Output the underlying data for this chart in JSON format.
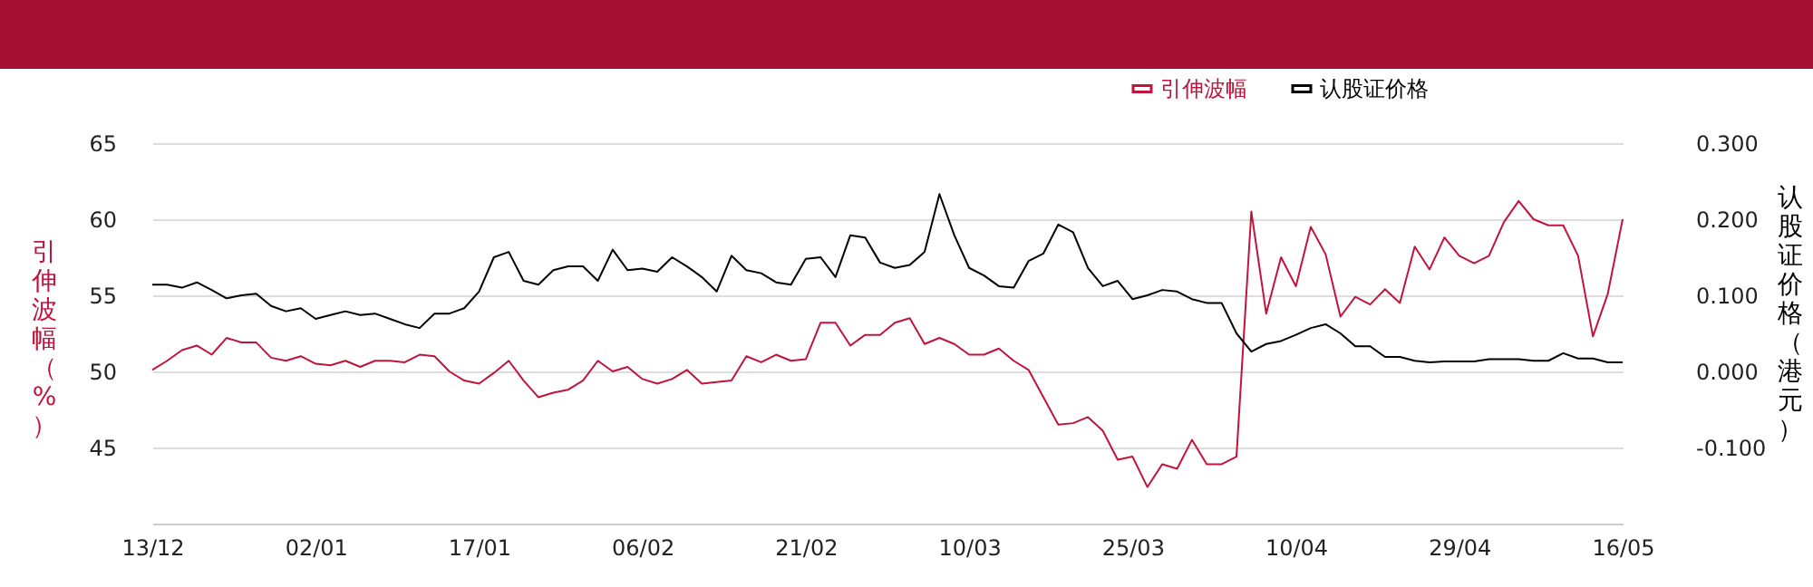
{
  "chart_data": {
    "type": "line",
    "ylabel": "引伸波幅（%）",
    "y2label": "认股证价格（港元）",
    "categories": [
      "13/12",
      null,
      null,
      null,
      null,
      null,
      null,
      null,
      null,
      null,
      null,
      "02/01",
      null,
      null,
      null,
      null,
      null,
      null,
      null,
      null,
      null,
      null,
      "17/01",
      null,
      null,
      null,
      null,
      null,
      null,
      null,
      null,
      null,
      null,
      "06/02",
      null,
      null,
      null,
      null,
      null,
      null,
      null,
      null,
      null,
      null,
      "21/02",
      null,
      null,
      null,
      null,
      null,
      null,
      null,
      null,
      null,
      null,
      "10/03",
      null,
      null,
      null,
      null,
      null,
      null,
      null,
      null,
      null,
      null,
      "25/03",
      null,
      null,
      null,
      null,
      null,
      null,
      null,
      null,
      null,
      null,
      "10/04",
      null,
      null,
      null,
      null,
      null,
      null,
      null,
      null,
      null,
      null,
      "29/04",
      null,
      null,
      null,
      null,
      null,
      null,
      null,
      null,
      null,
      null,
      "16/05"
    ],
    "series": [
      {
        "name": "引伸波幅",
        "color": "#c0143c",
        "values": [
          50.1,
          50.7,
          51.4,
          51.7,
          51.1,
          52.2,
          51.9,
          51.9,
          50.9,
          50.7,
          51.0,
          50.5,
          50.4,
          50.7,
          50.3,
          50.7,
          50.7,
          50.6,
          51.1,
          51.0,
          50.0,
          49.4,
          49.2,
          49.9,
          50.7,
          49.4,
          48.3,
          48.6,
          48.8,
          49.4,
          50.7,
          50.0,
          50.3,
          49.5,
          49.2,
          49.5,
          50.1,
          49.2,
          49.3,
          49.4,
          51.0,
          50.6,
          51.1,
          50.7,
          50.8,
          53.2,
          53.2,
          51.7,
          52.4,
          52.4,
          53.2,
          53.5,
          51.8,
          52.2,
          51.8,
          51.1,
          51.1,
          51.5,
          50.7,
          50.1,
          48.3,
          46.5,
          46.6,
          47.0,
          46.1,
          44.2,
          44.4,
          42.4,
          43.9,
          43.6,
          45.5,
          43.9,
          43.9,
          44.4,
          60.5,
          53.8,
          57.5,
          55.6,
          59.5,
          57.7,
          53.6,
          54.9,
          54.4,
          55.4,
          54.5,
          58.2,
          56.7,
          58.8,
          57.6,
          57.1,
          57.6,
          59.8,
          61.2,
          60.0,
          59.6,
          59.6,
          57.6,
          52.3,
          55.1,
          60.0
        ]
      },
      {
        "name": "认股证价格",
        "color": "#000000",
        "axis": "y2",
        "values": [
          0.114,
          0.114,
          0.11,
          0.117,
          0.107,
          0.096,
          0.1,
          0.102,
          0.086,
          0.079,
          0.083,
          0.069,
          0.074,
          0.079,
          0.074,
          0.076,
          0.069,
          0.062,
          0.057,
          0.076,
          0.076,
          0.083,
          0.105,
          0.15,
          0.157,
          0.119,
          0.114,
          0.133,
          0.138,
          0.138,
          0.119,
          0.16,
          0.133,
          0.135,
          0.131,
          0.15,
          0.138,
          0.124,
          0.105,
          0.152,
          0.133,
          0.129,
          0.117,
          0.114,
          0.148,
          0.15,
          0.124,
          0.179,
          0.176,
          0.143,
          0.136,
          0.14,
          0.157,
          0.233,
          0.179,
          0.136,
          0.126,
          0.112,
          0.11,
          0.145,
          0.155,
          0.193,
          0.183,
          0.136,
          0.112,
          0.119,
          0.095,
          0.1,
          0.107,
          0.105,
          0.095,
          0.09,
          0.09,
          0.05,
          0.026,
          0.036,
          0.04,
          0.048,
          0.057,
          0.062,
          0.05,
          0.033,
          0.033,
          0.019,
          0.019,
          0.014,
          0.012,
          0.013,
          0.013,
          0.013,
          0.016,
          0.016,
          0.016,
          0.014,
          0.014,
          0.024,
          0.017,
          0.017,
          0.012,
          0.012
        ]
      }
    ],
    "ylim": [
      40,
      65
    ],
    "yticks": [
      45,
      50,
      55,
      60,
      65
    ],
    "y2lim": [
      -0.2,
      0.3
    ],
    "y2ticks": [
      {
        "value": -0.1,
        "label": "-0.100"
      },
      {
        "value": 0,
        "label": "0.000"
      },
      {
        "value": 0.1,
        "label": "0.100"
      },
      {
        "value": 0.2,
        "label": "0.200"
      },
      {
        "value": 0.3,
        "label": "0.300"
      }
    ],
    "grid": "y",
    "legend": "top right",
    "marker": "none",
    "line_style": "solid"
  }
}
